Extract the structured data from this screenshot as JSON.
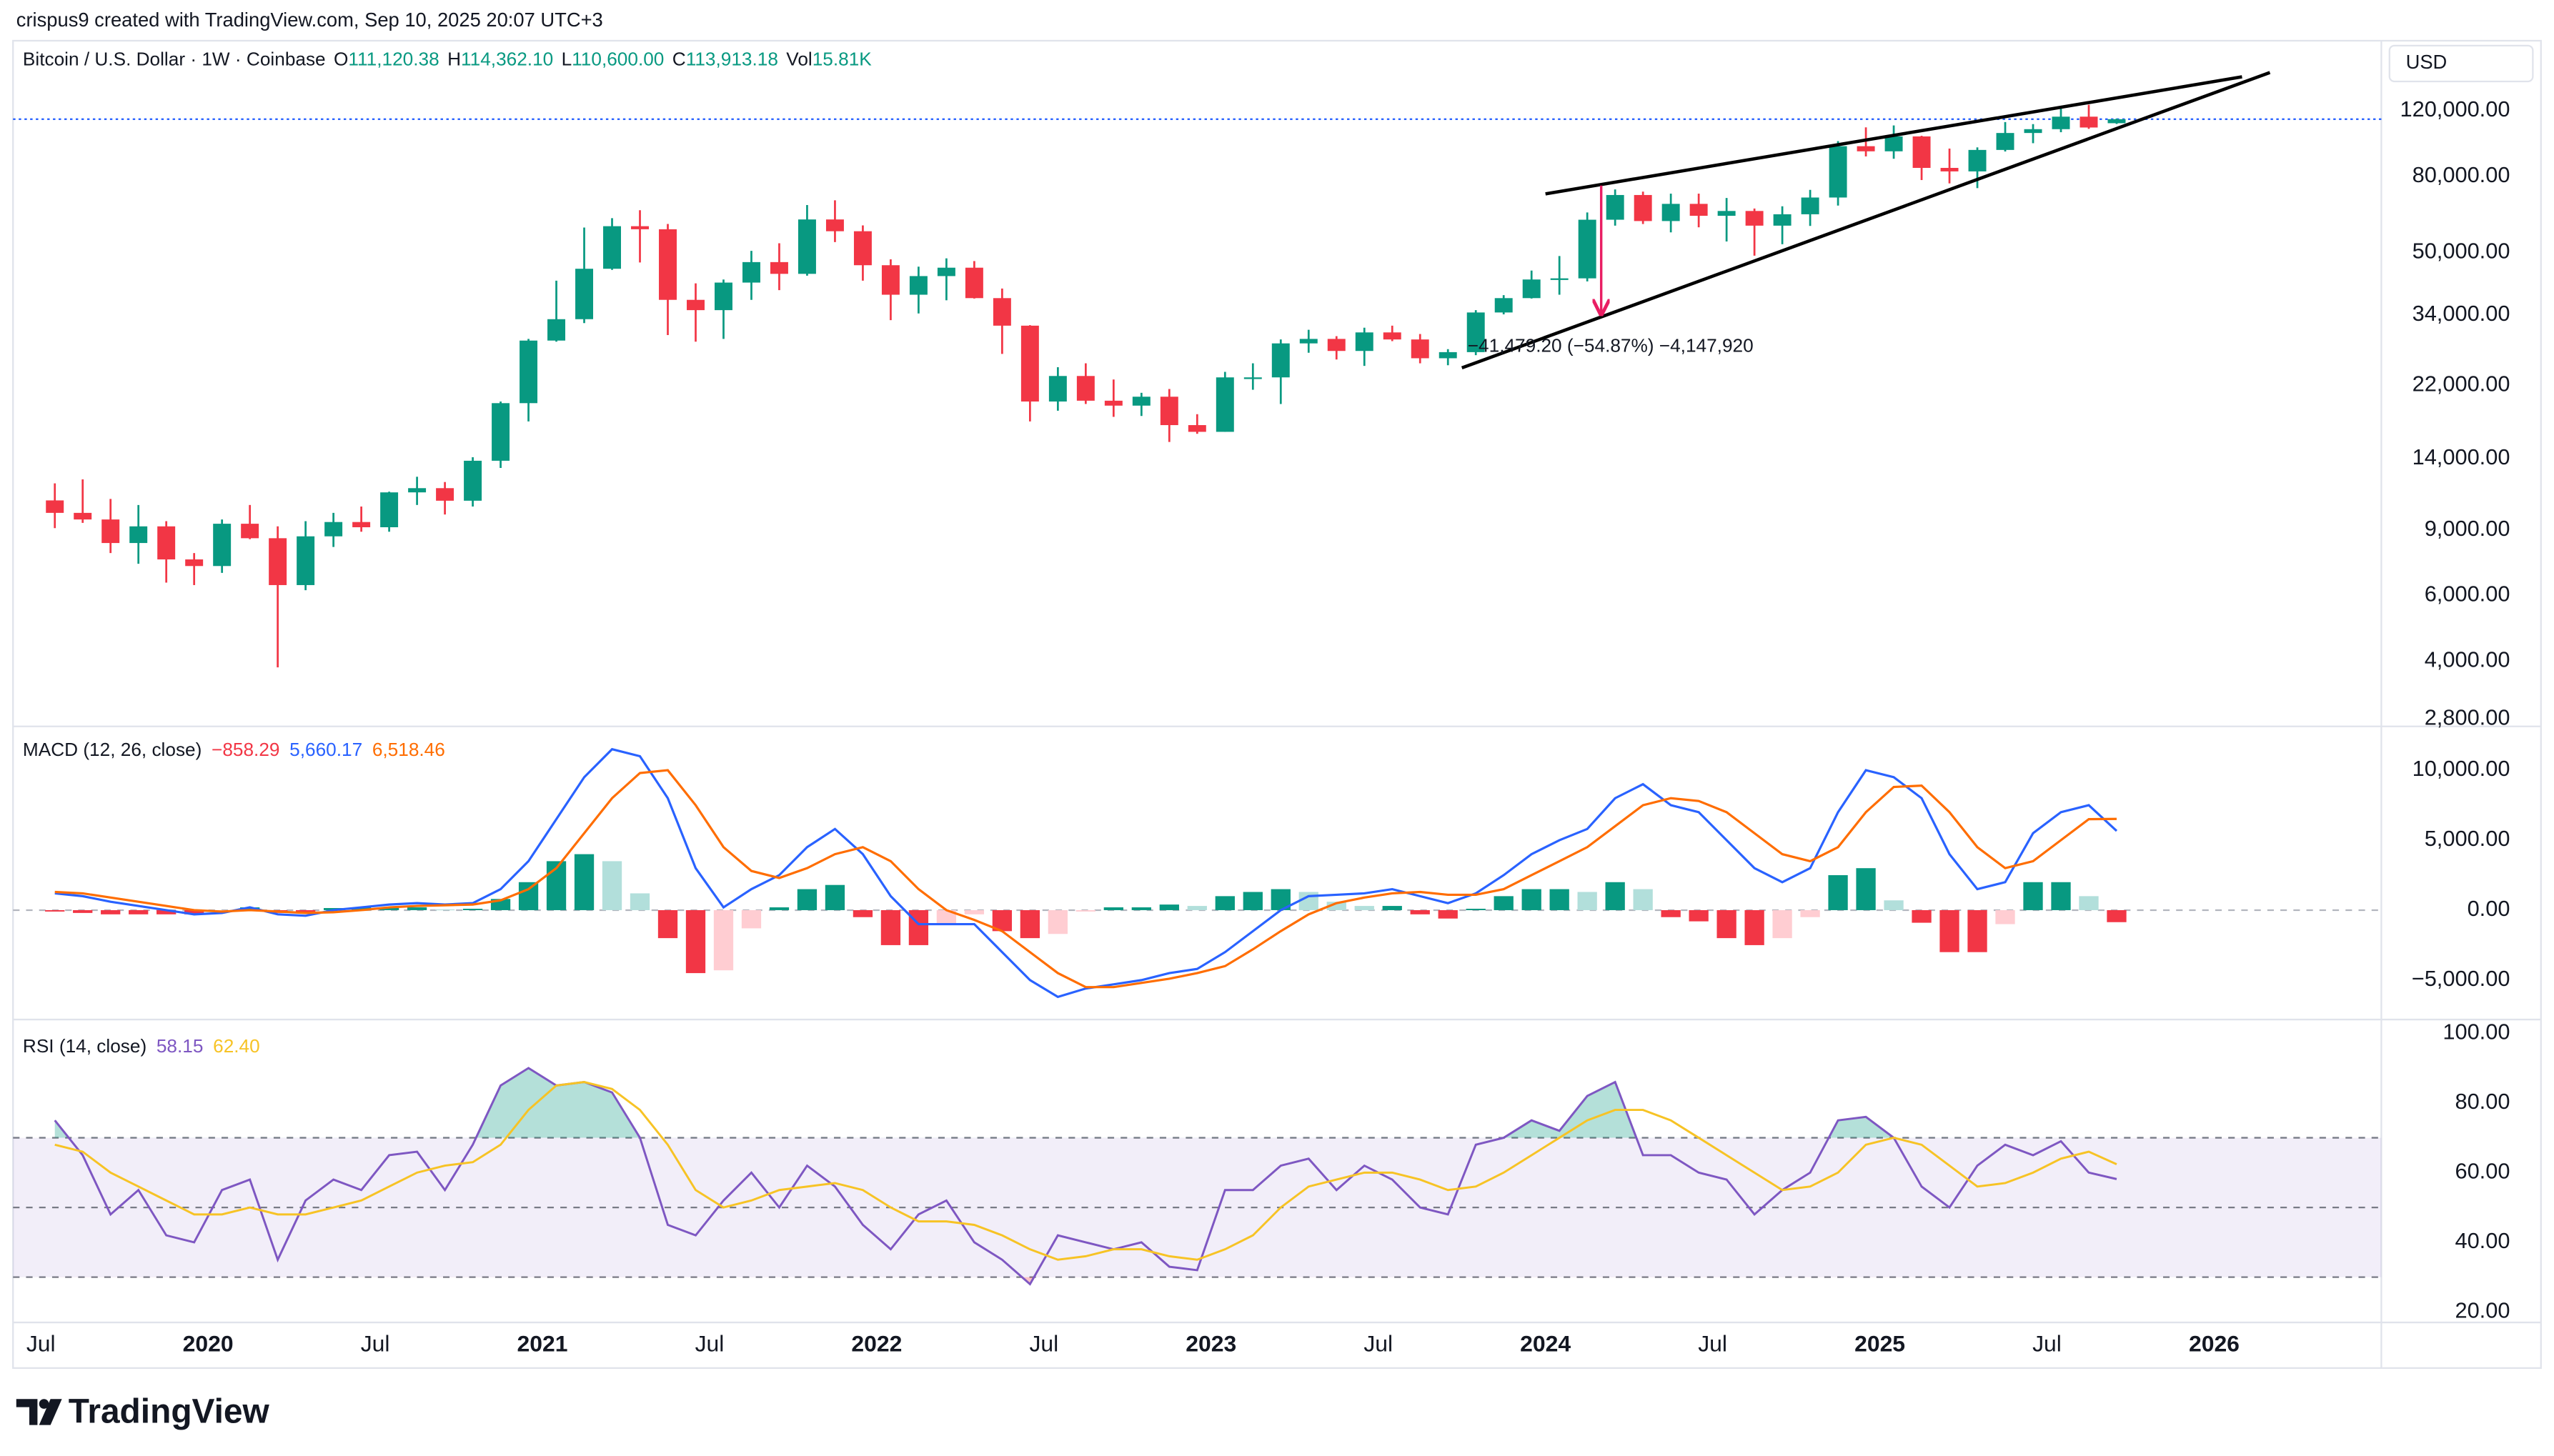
{
  "header": {
    "created": "crispus9 created with TradingView.com, Sep 10, 2025 20:07 UTC+3",
    "brand": "TradingView"
  },
  "chart_data": [
    {
      "type": "candlestick",
      "title": "Bitcoin / U.S. Dollar · 1W · Coinbase",
      "currency": "USD",
      "ohlc_labels": [
        "O",
        "H",
        "L",
        "C",
        "Vol"
      ],
      "ohlc_values": [
        "111,120.38",
        "114,362.10",
        "110,600.00",
        "113,913.18",
        "15.81K"
      ],
      "log_scale": true,
      "grid": false,
      "up_color": "#089981",
      "down_color": "#f23645",
      "last_price_color": "#2962ff",
      "xlim": [
        "2019-06",
        "2026-07"
      ],
      "xticks": [
        {
          "value": "2019-07",
          "label": "Jul"
        },
        {
          "value": "2020-01",
          "label": "2020"
        },
        {
          "value": "2020-07",
          "label": "Jul"
        },
        {
          "value": "2021-01",
          "label": "2021"
        },
        {
          "value": "2021-07",
          "label": "Jul"
        },
        {
          "value": "2022-01",
          "label": "2022"
        },
        {
          "value": "2022-07",
          "label": "Jul"
        },
        {
          "value": "2023-01",
          "label": "2023"
        },
        {
          "value": "2023-07",
          "label": "Jul"
        },
        {
          "value": "2024-01",
          "label": "2024"
        },
        {
          "value": "2024-07",
          "label": "Jul"
        },
        {
          "value": "2025-01",
          "label": "2025"
        },
        {
          "value": "2025-07",
          "label": "Jul"
        },
        {
          "value": "2026-01",
          "label": "2026"
        }
      ],
      "ylim": [
        2700,
        185000
      ],
      "yticks": [
        {
          "value": 2800,
          "label": "2,800.00"
        },
        {
          "value": 4000,
          "label": "4,000.00"
        },
        {
          "value": 6000,
          "label": "6,000.00"
        },
        {
          "value": 9000,
          "label": "9,000.00"
        },
        {
          "value": 14000,
          "label": "14,000.00"
        },
        {
          "value": 22000,
          "label": "22,000.00"
        },
        {
          "value": 34000,
          "label": "34,000.00"
        },
        {
          "value": 50000,
          "label": "50,000.00"
        },
        {
          "value": 80000,
          "label": "80,000.00"
        },
        {
          "value": 120000,
          "label": "120,000.00"
        }
      ],
      "x": [
        "2019-07",
        "2019-08",
        "2019-09",
        "2019-10",
        "2019-11",
        "2019-12",
        "2020-01",
        "2020-02",
        "2020-03",
        "2020-04",
        "2020-05",
        "2020-06",
        "2020-07",
        "2020-08",
        "2020-09",
        "2020-10",
        "2020-11",
        "2020-12",
        "2021-01",
        "2021-02",
        "2021-03",
        "2021-04",
        "2021-05",
        "2021-06",
        "2021-07",
        "2021-08",
        "2021-09",
        "2021-10",
        "2021-11",
        "2021-12",
        "2022-01",
        "2022-02",
        "2022-03",
        "2022-04",
        "2022-05",
        "2022-06",
        "2022-07",
        "2022-08",
        "2022-09",
        "2022-10",
        "2022-11",
        "2022-12",
        "2023-01",
        "2023-02",
        "2023-03",
        "2023-04",
        "2023-05",
        "2023-06",
        "2023-07",
        "2023-08",
        "2023-09",
        "2023-10",
        "2023-11",
        "2023-12",
        "2024-01",
        "2024-02",
        "2024-03",
        "2024-04",
        "2024-05",
        "2024-06",
        "2024-07",
        "2024-08",
        "2024-09",
        "2024-10",
        "2024-11",
        "2024-12",
        "2025-01",
        "2025-02",
        "2025-03",
        "2025-04",
        "2025-05",
        "2025-06",
        "2025-07",
        "2025-08",
        "2025-09"
      ],
      "open": [
        10800,
        10000,
        9600,
        8300,
        9200,
        7500,
        7200,
        9350,
        8550,
        6400,
        8650,
        9450,
        9150,
        11350,
        11650,
        10780,
        13800,
        19700,
        29000,
        33100,
        45200,
        58800,
        57700,
        37300,
        35000,
        41500,
        47100,
        43800,
        61300,
        57000,
        46200,
        38500,
        43200,
        45500,
        37700,
        31800,
        19900,
        23300,
        20000,
        19400,
        20500,
        17200,
        16500,
        23100,
        23100,
        28500,
        29300,
        27200,
        30500,
        29200,
        26000,
        27000,
        34500,
        37700,
        42300,
        42600,
        61200,
        71300,
        60700,
        67500,
        62700,
        64600,
        59000,
        63300,
        70200,
        96400,
        93400,
        102400,
        84300,
        82500,
        94200,
        104600,
        107100,
        115700,
        111120.38
      ],
      "high": [
        12000,
        12300,
        10900,
        10500,
        9500,
        7800,
        9600,
        10500,
        9200,
        9500,
        10000,
        10400,
        11400,
        12500,
        12100,
        14100,
        19900,
        29300,
        42000,
        58300,
        61800,
        64900,
        59600,
        41300,
        42300,
        50500,
        52900,
        67000,
        69000,
        59100,
        47900,
        45800,
        48200,
        47400,
        40000,
        31900,
        24600,
        25200,
        22800,
        21000,
        21500,
        18400,
        23900,
        25200,
        29200,
        31000,
        29800,
        31400,
        31800,
        30200,
        27500,
        35000,
        38400,
        44700,
        48900,
        64000,
        73800,
        72800,
        71900,
        71900,
        70000,
        65600,
        66500,
        73600,
        99500,
        108300,
        109600,
        102800,
        95000,
        95700,
        111900,
        110500,
        123200,
        124500,
        114362.1
      ],
      "low": [
        9100,
        9400,
        7800,
        7300,
        6500,
        6400,
        6900,
        8500,
        3850,
        6200,
        8100,
        8900,
        8900,
        10500,
        9900,
        10400,
        13200,
        17600,
        28800,
        32300,
        44900,
        47000,
        30000,
        28800,
        29300,
        37300,
        39600,
        43300,
        53300,
        42000,
        32900,
        34300,
        37200,
        37600,
        26700,
        17600,
        18800,
        19600,
        18100,
        18200,
        15500,
        16300,
        16500,
        21400,
        19600,
        26900,
        25800,
        24800,
        28900,
        25200,
        24900,
        26500,
        34100,
        37600,
        38500,
        41800,
        59000,
        59600,
        56600,
        58400,
        53500,
        49000,
        52600,
        58900,
        66800,
        90500,
        89200,
        78200,
        76600,
        74400,
        93300,
        98200,
        105100,
        107300,
        110600
      ],
      "close": [
        10000,
        9600,
        8300,
        9200,
        7500,
        7200,
        9350,
        8550,
        6400,
        8650,
        9450,
        9150,
        11350,
        11650,
        10780,
        13800,
        19700,
        29000,
        33100,
        45200,
        58800,
        57700,
        37300,
        35000,
        41500,
        47100,
        43800,
        61300,
        57000,
        46200,
        38500,
        43200,
        45500,
        37700,
        31800,
        19900,
        23300,
        20000,
        19400,
        20500,
        17200,
        16500,
        23100,
        23100,
        28500,
        29300,
        27200,
        30500,
        29200,
        26000,
        27000,
        34500,
        37700,
        42300,
        42600,
        61200,
        71300,
        60700,
        67500,
        62700,
        64600,
        59000,
        63300,
        70200,
        96400,
        93400,
        102400,
        84300,
        82500,
        94200,
        104600,
        107100,
        115700,
        108200,
        113913.18
      ],
      "trendlines": [
        {
          "x": [
            "2024-01",
            "2026-02"
          ],
          "y": [
            71800,
            148000
          ],
          "color": "#000000"
        },
        {
          "x": [
            "2023-10",
            "2026-03"
          ],
          "y": [
            24500,
            152000
          ],
          "color": "#000000"
        }
      ],
      "measure": {
        "x": "2024-03",
        "from": 75600,
        "to": 34120.8,
        "label": "−41,479.20 (−54.87%) −4,147,920",
        "color": "#e91e63"
      }
    },
    {
      "type": "macd",
      "title": "MACD (12, 26, close)",
      "legend_values": [
        "−858.29",
        "5,660.17",
        "6,518.46"
      ],
      "legend_colors": [
        "#f23645",
        "#2962ff",
        "#ff6d00"
      ],
      "ylim": [
        -7700,
        12900
      ],
      "yticks": [
        {
          "value": -5000,
          "label": "−5,000.00"
        },
        {
          "value": 0,
          "label": "0.00"
        },
        {
          "value": 5000,
          "label": "5,000.00"
        },
        {
          "value": 10000,
          "label": "10,000.00"
        }
      ],
      "series": [
        {
          "color": "#2962ff",
          "values": [
            1200,
            1000,
            600,
            300,
            0,
            -300,
            -200,
            200,
            -300,
            -400,
            0,
            200,
            400,
            500,
            400,
            500,
            1500,
            3500,
            6500,
            9500,
            11500,
            11000,
            8000,
            3000,
            200,
            1500,
            2500,
            4500,
            5800,
            4000,
            1000,
            -1000,
            -1000,
            -1000,
            -3000,
            -5000,
            -6200,
            -5600,
            -5300,
            -5000,
            -4500,
            -4200,
            -3000,
            -1500,
            0,
            1000,
            1100,
            1200,
            1500,
            1000,
            500,
            1200,
            2500,
            4000,
            5000,
            5800,
            8000,
            9000,
            7500,
            7000,
            5000,
            3000,
            2000,
            3000,
            7000,
            10000,
            9500,
            8000,
            4000,
            1500,
            2000,
            5500,
            7000,
            7500,
            5660.17
          ]
        },
        {
          "color": "#ff6d00",
          "values": [
            1300,
            1200,
            900,
            600,
            300,
            0,
            -100,
            0,
            -100,
            -200,
            -150,
            0,
            200,
            300,
            350,
            400,
            700,
            1500,
            3000,
            5500,
            8000,
            9800,
            10000,
            7500,
            4500,
            2800,
            2300,
            3000,
            4000,
            4500,
            3500,
            1500,
            0,
            -700,
            -1500,
            -3000,
            -4500,
            -5500,
            -5500,
            -5200,
            -4900,
            -4500,
            -4000,
            -2800,
            -1500,
            -300,
            500,
            900,
            1200,
            1300,
            1100,
            1100,
            1500,
            2500,
            3500,
            4500,
            6000,
            7500,
            8000,
            7800,
            7000,
            5500,
            4000,
            3500,
            4500,
            7000,
            8800,
            8900,
            7000,
            4500,
            3000,
            3500,
            5000,
            6500,
            6518.46
          ]
        }
      ],
      "histogram": [
        -100,
        -200,
        -300,
        -300,
        -300,
        -300,
        -100,
        200,
        -200,
        -200,
        150,
        200,
        200,
        200,
        50,
        100,
        800,
        2000,
        3500,
        4000,
        3500,
        1200,
        -2000,
        -4500,
        -4300,
        -1300,
        200,
        1500,
        1800,
        -500,
        -2500,
        -2500,
        -1000,
        -300,
        -1500,
        -2000,
        -1700,
        -100,
        200,
        200,
        400,
        300,
        1000,
        1300,
        1500,
        1300,
        600,
        300,
        300,
        -300,
        -600,
        100,
        1000,
        1500,
        1500,
        1300,
        2000,
        1500,
        -500,
        -800,
        -2000,
        -2500,
        -2000,
        -500,
        2500,
        3000,
        700,
        -900,
        -3000,
        -3000,
        -1000,
        2000,
        2000,
        1000,
        -858.29
      ],
      "histogram_colors": {
        "rising_above": "#089981",
        "falling_above": "#b2dfdb",
        "falling_below": "#f23645",
        "rising_below": "#ffcdd2"
      }
    },
    {
      "type": "rsi",
      "title": "RSI (14, close)",
      "legend_values": [
        "58.15",
        "62.40"
      ],
      "legend_colors": [
        "#7e57c2",
        "#f7c325"
      ],
      "ylim": [
        17,
        103
      ],
      "yticks": [
        {
          "value": 20,
          "label": "20.00"
        },
        {
          "value": 40,
          "label": "40.00"
        },
        {
          "value": 60,
          "label": "60.00"
        },
        {
          "value": 80,
          "label": "80.00"
        },
        {
          "value": 100,
          "label": "100.00"
        }
      ],
      "band": [
        30,
        70
      ],
      "midline": 50,
      "band_color": "#7e57c2",
      "overbought_color": "#089981",
      "oversold_color": "#f23645",
      "series": [
        {
          "color": "#7e57c2",
          "values": [
            75,
            65,
            48,
            55,
            42,
            40,
            55,
            58,
            35,
            52,
            58,
            55,
            65,
            66,
            55,
            68,
            85,
            90,
            85,
            86,
            83,
            70,
            45,
            42,
            52,
            60,
            50,
            62,
            56,
            45,
            38,
            48,
            52,
            40,
            35,
            28,
            42,
            40,
            38,
            40,
            33,
            32,
            55,
            55,
            62,
            64,
            55,
            62,
            58,
            50,
            48,
            68,
            70,
            75,
            72,
            82,
            86,
            65,
            65,
            60,
            58,
            48,
            55,
            60,
            75,
            76,
            70,
            56,
            50,
            62,
            68,
            65,
            69,
            60,
            58.15
          ]
        },
        {
          "color": "#f7c325",
          "values": [
            68,
            66,
            60,
            56,
            52,
            48,
            48,
            50,
            48,
            48,
            50,
            52,
            56,
            60,
            62,
            63,
            68,
            78,
            85,
            86,
            84,
            78,
            68,
            55,
            50,
            52,
            55,
            56,
            57,
            55,
            50,
            46,
            46,
            45,
            42,
            38,
            35,
            36,
            38,
            38,
            36,
            35,
            38,
            42,
            50,
            56,
            58,
            60,
            60,
            58,
            55,
            56,
            60,
            65,
            70,
            75,
            78,
            78,
            75,
            70,
            65,
            60,
            55,
            56,
            60,
            68,
            70,
            68,
            62,
            56,
            57,
            60,
            64,
            66,
            62.4
          ]
        }
      ]
    }
  ]
}
